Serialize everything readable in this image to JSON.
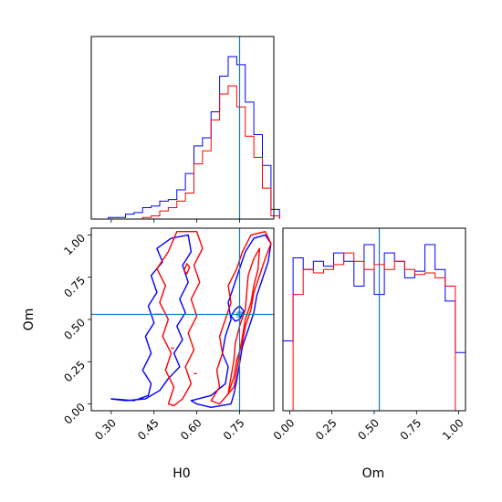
{
  "chart_data": {
    "type": "corner",
    "params": [
      "H0",
      "Om"
    ],
    "truth": {
      "H0": 0.75,
      "Om": 0.53
    },
    "colors": {
      "blue": "#0000ff",
      "red": "#ff0000",
      "truth": "#1f77b4"
    },
    "series": [
      {
        "color": "blue"
      },
      {
        "color": "red"
      }
    ],
    "h0_hist": {
      "xlim": [
        0.23,
        0.87
      ],
      "bin_edges": [
        0.23,
        0.26,
        0.29,
        0.32,
        0.35,
        0.38,
        0.41,
        0.44,
        0.47,
        0.5,
        0.53,
        0.56,
        0.59,
        0.62,
        0.65,
        0.68,
        0.71,
        0.74,
        0.77,
        0.8,
        0.83,
        0.86,
        0.89
      ],
      "blue": [
        0,
        0,
        0.01,
        0.01,
        0.03,
        0.04,
        0.07,
        0.08,
        0.11,
        0.12,
        0.18,
        0.28,
        0.45,
        0.5,
        0.66,
        0.88,
        1.0,
        0.95,
        0.72,
        0.52,
        0.33,
        0.06
      ],
      "red": [
        0,
        0,
        0,
        0,
        0,
        0,
        0.01,
        0.02,
        0.05,
        0.07,
        0.11,
        0.16,
        0.34,
        0.42,
        0.61,
        0.77,
        0.82,
        0.69,
        0.51,
        0.38,
        0.19,
        0.02
      ]
    },
    "om_hist": {
      "xlim": [
        -0.04,
        1.04
      ],
      "bin_edges": [
        -0.04,
        0.02,
        0.08,
        0.14,
        0.2,
        0.26,
        0.32,
        0.38,
        0.44,
        0.5,
        0.56,
        0.62,
        0.68,
        0.74,
        0.8,
        0.86,
        0.92,
        0.98,
        1.04
      ],
      "blue": [
        0.42,
        0.92,
        0.85,
        0.9,
        0.87,
        0.95,
        0.9,
        0.75,
        1.0,
        0.7,
        0.95,
        0.9,
        0.8,
        0.84,
        1.0,
        0.85,
        0.66,
        0.35
      ],
      "red": [
        0,
        0.7,
        0.85,
        0.83,
        0.85,
        0.88,
        0.95,
        0.9,
        0.85,
        0.88,
        0.85,
        0.9,
        0.85,
        0.82,
        0.83,
        0.8,
        0.75,
        0
      ]
    },
    "contours": {
      "xlim": [
        0.23,
        0.87
      ],
      "ylim": [
        -0.04,
        1.04
      ],
      "blue": [
        [
          [
            0.3,
            0.03
          ],
          [
            0.38,
            0.02
          ],
          [
            0.43,
            0.05
          ],
          [
            0.44,
            0.12
          ],
          [
            0.41,
            0.2
          ],
          [
            0.44,
            0.3
          ],
          [
            0.42,
            0.4
          ],
          [
            0.45,
            0.48
          ],
          [
            0.43,
            0.58
          ],
          [
            0.46,
            0.66
          ],
          [
            0.44,
            0.76
          ],
          [
            0.48,
            0.84
          ],
          [
            0.46,
            0.92
          ],
          [
            0.51,
            0.98
          ],
          [
            0.57,
            1.0
          ],
          [
            0.58,
            0.9
          ],
          [
            0.55,
            0.82
          ],
          [
            0.57,
            0.72
          ],
          [
            0.54,
            0.62
          ],
          [
            0.56,
            0.54
          ],
          [
            0.53,
            0.46
          ],
          [
            0.55,
            0.38
          ],
          [
            0.52,
            0.3
          ],
          [
            0.54,
            0.22
          ],
          [
            0.5,
            0.15
          ],
          [
            0.47,
            0.08
          ],
          [
            0.42,
            0.03
          ],
          [
            0.35,
            0.02
          ],
          [
            0.3,
            0.03
          ]
        ],
        [
          [
            0.58,
            0.02
          ],
          [
            0.65,
            0.05
          ],
          [
            0.7,
            0.12
          ],
          [
            0.71,
            0.22
          ],
          [
            0.69,
            0.3
          ],
          [
            0.7,
            0.4
          ],
          [
            0.72,
            0.5
          ],
          [
            0.71,
            0.6
          ],
          [
            0.73,
            0.7
          ],
          [
            0.75,
            0.8
          ],
          [
            0.77,
            0.9
          ],
          [
            0.8,
            0.98
          ],
          [
            0.84,
            1.0
          ],
          [
            0.86,
            0.95
          ],
          [
            0.85,
            0.84
          ],
          [
            0.83,
            0.74
          ],
          [
            0.81,
            0.64
          ],
          [
            0.8,
            0.54
          ],
          [
            0.78,
            0.44
          ],
          [
            0.76,
            0.34
          ],
          [
            0.75,
            0.24
          ],
          [
            0.74,
            0.14
          ],
          [
            0.73,
            0.06
          ],
          [
            0.72,
            0.0
          ],
          [
            0.65,
            -0.02
          ],
          [
            0.6,
            0.0
          ],
          [
            0.58,
            0.02
          ]
        ],
        [
          [
            0.72,
            0.52
          ],
          [
            0.735,
            0.56
          ],
          [
            0.75,
            0.58
          ],
          [
            0.765,
            0.55
          ],
          [
            0.75,
            0.5
          ],
          [
            0.735,
            0.49
          ],
          [
            0.72,
            0.52
          ]
        ]
      ],
      "red": [
        [
          [
            0.5,
            0.0
          ],
          [
            0.52,
            0.1
          ],
          [
            0.49,
            0.2
          ],
          [
            0.51,
            0.3
          ],
          [
            0.48,
            0.4
          ],
          [
            0.5,
            0.5
          ],
          [
            0.47,
            0.6
          ],
          [
            0.49,
            0.7
          ],
          [
            0.46,
            0.8
          ],
          [
            0.5,
            0.9
          ],
          [
            0.53,
            1.02
          ],
          [
            0.6,
            1.02
          ],
          [
            0.62,
            0.92
          ],
          [
            0.59,
            0.82
          ],
          [
            0.61,
            0.72
          ],
          [
            0.58,
            0.62
          ],
          [
            0.6,
            0.52
          ],
          [
            0.57,
            0.42
          ],
          [
            0.59,
            0.32
          ],
          [
            0.56,
            0.22
          ],
          [
            0.58,
            0.12
          ],
          [
            0.55,
            0.03
          ],
          [
            0.52,
            -0.01
          ],
          [
            0.5,
            0.0
          ]
        ],
        [
          [
            0.65,
            0.02
          ],
          [
            0.68,
            0.1
          ],
          [
            0.67,
            0.2
          ],
          [
            0.69,
            0.3
          ],
          [
            0.68,
            0.4
          ],
          [
            0.7,
            0.5
          ],
          [
            0.72,
            0.6
          ],
          [
            0.71,
            0.7
          ],
          [
            0.74,
            0.8
          ],
          [
            0.76,
            0.9
          ],
          [
            0.79,
            1.0
          ],
          [
            0.84,
            1.02
          ],
          [
            0.86,
            0.95
          ],
          [
            0.84,
            0.86
          ],
          [
            0.82,
            0.76
          ],
          [
            0.8,
            0.66
          ],
          [
            0.79,
            0.56
          ],
          [
            0.77,
            0.46
          ],
          [
            0.76,
            0.36
          ],
          [
            0.74,
            0.26
          ],
          [
            0.73,
            0.16
          ],
          [
            0.71,
            0.06
          ],
          [
            0.68,
            0.0
          ],
          [
            0.65,
            0.02
          ]
        ],
        [
          [
            0.71,
            0.06
          ],
          [
            0.72,
            0.16
          ],
          [
            0.73,
            0.26
          ],
          [
            0.735,
            0.36
          ],
          [
            0.75,
            0.46
          ],
          [
            0.77,
            0.56
          ],
          [
            0.775,
            0.66
          ],
          [
            0.78,
            0.76
          ],
          [
            0.8,
            0.86
          ],
          [
            0.82,
            0.92
          ],
          [
            0.815,
            0.8
          ],
          [
            0.8,
            0.7
          ],
          [
            0.79,
            0.6
          ],
          [
            0.77,
            0.5
          ],
          [
            0.76,
            0.4
          ],
          [
            0.75,
            0.3
          ],
          [
            0.74,
            0.2
          ],
          [
            0.73,
            0.1
          ],
          [
            0.71,
            0.06
          ]
        ],
        [
          [
            0.555,
            0.79
          ],
          [
            0.565,
            0.83
          ],
          [
            0.575,
            0.81
          ],
          [
            0.565,
            0.77
          ],
          [
            0.555,
            0.79
          ]
        ]
      ],
      "red_segments": [
        [
          [
            0.45,
            0.53
          ],
          [
            0.48,
            0.53
          ]
        ],
        [
          [
            0.51,
            0.33
          ],
          [
            0.52,
            0.33
          ]
        ],
        [
          [
            0.59,
            0.18
          ],
          [
            0.6,
            0.18
          ]
        ]
      ]
    },
    "x_ticks_h0": [
      0.3,
      0.45,
      0.6,
      0.75
    ],
    "x_ticklabels_h0": [
      "0.30",
      "0.45",
      "0.60",
      "0.75"
    ],
    "y_ticks_om": [
      0.0,
      0.25,
      0.5,
      0.75,
      1.0
    ],
    "y_ticklabels_om": [
      "0.00",
      "0.25",
      "0.50",
      "0.75",
      "1.00"
    ],
    "x_ticks_om": [
      0.0,
      0.25,
      0.5,
      0.75,
      1.0
    ],
    "x_ticklabels_om": [
      "0.00",
      "0.25",
      "0.50",
      "0.75",
      "1.00"
    ],
    "xlabel_left": "H0",
    "xlabel_right": "Om",
    "ylabel": "Om"
  }
}
